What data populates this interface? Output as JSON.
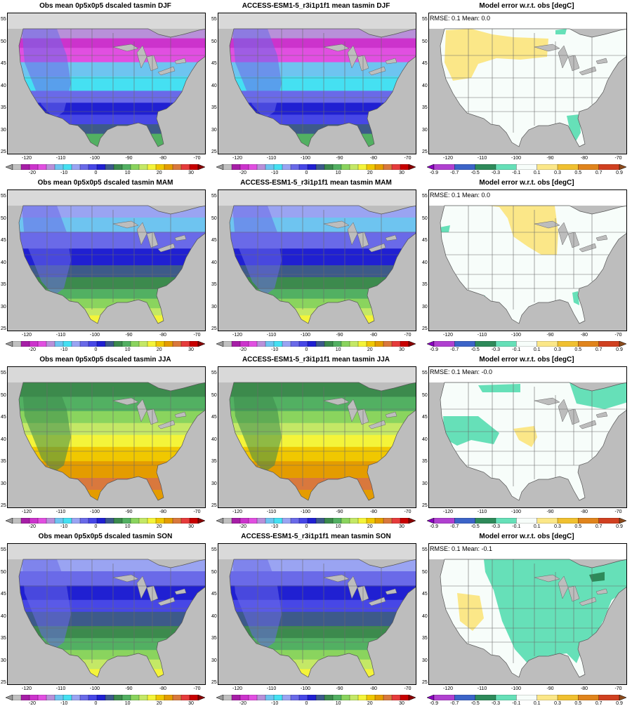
{
  "lat_labels": [
    "25",
    "30",
    "35",
    "40",
    "45",
    "50",
    "55"
  ],
  "lon_labels": [
    "-120",
    "-110",
    "-100",
    "-90",
    "-80",
    "-70"
  ],
  "absolute_scale": {
    "colors": [
      "#9b9b9b",
      "#c0c0c0",
      "#a61ea6",
      "#cc33cc",
      "#e14fe1",
      "#b890d9",
      "#6ec4f0",
      "#45e0f2",
      "#9aa4f2",
      "#6a6ae8",
      "#4747e6",
      "#2020d2",
      "#3d5a8a",
      "#3c8a4d",
      "#52b062",
      "#8ad45e",
      "#c4e866",
      "#f4f43a",
      "#f0c800",
      "#e49c00",
      "#d9783d",
      "#e63c3c",
      "#c80000",
      "#8a0000"
    ],
    "labels": [
      "-20",
      "-10",
      "0",
      "10",
      "20",
      "30"
    ]
  },
  "error_scale": {
    "colors": [
      "#8a00c0",
      "#b040d0",
      "#3c64c8",
      "#2e8a5a",
      "#66e0b8",
      "#f7fdfa",
      "#fbe788",
      "#f0c030",
      "#e0841c",
      "#d04020",
      "#8c4a1c"
    ],
    "labels": [
      "-0.9",
      "-0.7",
      "-0.5",
      "-0.3",
      "-0.1",
      "0.1",
      "0.3",
      "0.5",
      "0.7",
      "0.9"
    ]
  },
  "rows": [
    {
      "season": "DJF",
      "obs_title": "Obs mean 0p5x0p5 dscaled tasmin DJF",
      "model_title": "ACCESS-ESM1-5_r3i1p1f1 mean tasmin DJF",
      "err_title": "Model error w.r.t. obs [degC]",
      "stats": "RMSE: 0.1   Mean: 0.0",
      "base_color": "#3c8a4d"
    },
    {
      "season": "MAM",
      "obs_title": "Obs mean 0p5x0p5 dscaled tasmin MAM",
      "model_title": "ACCESS-ESM1-5_r3i1p1f1 mean tasmin MAM",
      "err_title": "Model error w.r.t. obs [degC]",
      "stats": "RMSE: 0.1   Mean: 0.0",
      "base_color": "#3d5a8a"
    },
    {
      "season": "JJA",
      "obs_title": "Obs mean 0p5x0p5 dscaled tasmin JJA",
      "model_title": "ACCESS-ESM1-5_r3i1p1f1 mean tasmin JJA",
      "err_title": "Model error w.r.t. obs [degC]",
      "stats": "RMSE: 0.1   Mean: -0.0",
      "base_color": "#f4f43a"
    },
    {
      "season": "SON",
      "obs_title": "Obs mean 0p5x0p5 dscaled tasmin SON",
      "model_title": "ACCESS-ESM1-5_r3i1p1f1 mean tasmin SON",
      "err_title": "Model error w.r.t. obs [degC]",
      "stats": "RMSE: 0.1   Mean: -0.1",
      "base_color": "#3d5a8a"
    }
  ]
}
